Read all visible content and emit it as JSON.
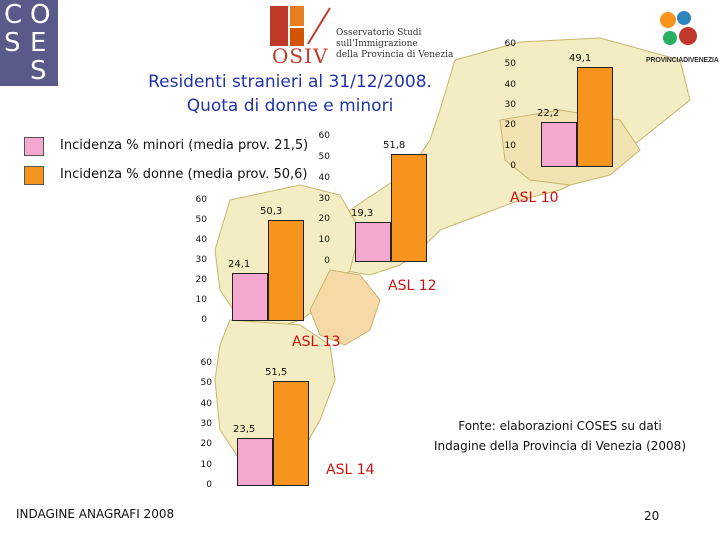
{
  "logos": {
    "coses": [
      "C",
      "O",
      "S",
      "E",
      "S"
    ],
    "osiv_name": "OSIV",
    "osiv_lines": [
      "Osservatorio Studi",
      "sull'Immigrazione",
      "della Provincia di Venezia"
    ],
    "provincia_name": "PROVINCIADIVENEZIA"
  },
  "title": {
    "line1": "Residenti stranieri al 31/12/2008.",
    "line2": "Quota di donne e minori"
  },
  "legend": [
    {
      "label": "Incidenza % minori (media prov. 21,5)",
      "color": "#f5a8cf"
    },
    {
      "label": "Incidenza % donne (media prov. 50,6)",
      "color": "#f7941d"
    }
  ],
  "chart_data": {
    "type": "bar",
    "series": [
      {
        "name": "Incidenza % minori (media prov. 21,5)",
        "color": "#f5a8cf"
      },
      {
        "name": "Incidenza % donne (media prov. 50,6)",
        "color": "#f7941d"
      }
    ],
    "charts": [
      {
        "region": "ASL 12",
        "minori": 24.1,
        "donne": 50.3,
        "minori_label": "24,1",
        "donne_label": "50,3",
        "ylim": [
          0,
          60
        ],
        "yticks": [
          "0",
          "10",
          "20",
          "30",
          "40",
          "50",
          "60"
        ]
      },
      {
        "region": "ASL 10",
        "minori": 22.2,
        "donne": 49.1,
        "minori_label": "22,2",
        "donne_label": "49,1",
        "ylim": [
          0,
          60
        ],
        "yticks": [
          "0",
          "10",
          "20",
          "30",
          "40",
          "50",
          "60"
        ]
      },
      {
        "region": "ASL 13",
        "minori": 19.3,
        "donne": 51.8,
        "minori_label": "19,3",
        "donne_label": "51,8",
        "ylim": [
          0,
          60
        ],
        "yticks": [
          "0",
          "10",
          "20",
          "30",
          "40",
          "50",
          "60"
        ]
      },
      {
        "region": "ASL 14",
        "minori": 23.5,
        "donne": 51.5,
        "minori_label": "23,5",
        "donne_label": "51,5",
        "ylim": [
          0,
          60
        ],
        "yticks": [
          "0",
          "10",
          "20",
          "30",
          "40",
          "50",
          "60"
        ]
      }
    ]
  },
  "asl_labels": {
    "asl10": "ASL 10",
    "asl12": "ASL 12",
    "asl13": "ASL 13",
    "asl14": "ASL 14"
  },
  "source": {
    "line1": "Fonte: elaborazioni COSES su dati",
    "line2": "Indagine della Provincia di Venezia (2008)"
  },
  "footer": {
    "text": "INDAGINE ANAGRAFI 2008",
    "page": "20"
  },
  "colors": {
    "map_fill": "#f4edc4",
    "map_alt": "#f7d9a8",
    "map_outline": "#c8b46a",
    "sea": "#ffffff",
    "title": "#2233aa",
    "asl": "#cc1111"
  }
}
